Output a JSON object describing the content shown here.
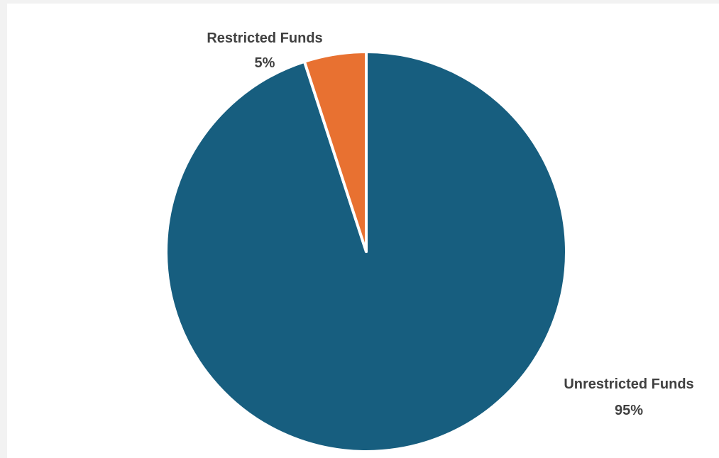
{
  "chart_data": {
    "type": "pie",
    "title": "",
    "slices": [
      {
        "label": "Unrestricted Funds",
        "value": 95,
        "value_label": "95%",
        "color": "#175e7f"
      },
      {
        "label": "Restricted Funds",
        "value": 5,
        "value_label": "5%",
        "color": "#e87131"
      }
    ],
    "start_angle_deg": 0,
    "direction": "clockwise",
    "slice_border_color": "#ffffff",
    "legend": "none",
    "label_color": "#404040"
  }
}
